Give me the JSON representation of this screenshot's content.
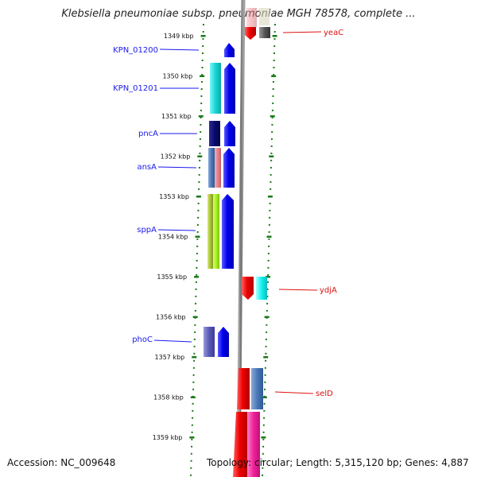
{
  "title": "Klebsiella pneumoniae subsp. pneumoniae MGH 78578, complete ...",
  "ruler": {
    "ticks": [
      {
        "label": "1349 kbp",
        "kb": 1349
      },
      {
        "label": "1350 kbp",
        "kb": 1350
      },
      {
        "label": "1351 kbp",
        "kb": 1351
      },
      {
        "label": "1352 kbp",
        "kb": 1352
      },
      {
        "label": "1353 kbp",
        "kb": 1353
      },
      {
        "label": "1354 kbp",
        "kb": 1354
      },
      {
        "label": "1355 kbp",
        "kb": 1355
      },
      {
        "label": "1356 kbp",
        "kb": 1356
      },
      {
        "label": "1357 kbp",
        "kb": 1357
      },
      {
        "label": "1358 kbp",
        "kb": 1358
      },
      {
        "label": "1359 kbp",
        "kb": 1359
      }
    ]
  },
  "labels_left": [
    {
      "name": "KPN_01200",
      "color": "#1a1aee"
    },
    {
      "name": "KPN_01201",
      "color": "#1a1aee"
    },
    {
      "name": "pncA",
      "color": "#1a1aee"
    },
    {
      "name": "ansA",
      "color": "#1a1aee"
    },
    {
      "name": "sppA",
      "color": "#1a1aee"
    },
    {
      "name": "phoC",
      "color": "#1a1aee"
    }
  ],
  "labels_right": [
    {
      "name": "yeaC",
      "color": "#dd1111"
    },
    {
      "name": "ydjA",
      "color": "#dd1111"
    },
    {
      "name": "selD",
      "color": "#dd1111"
    }
  ],
  "footer": {
    "accession": "Accession: NC_009648",
    "topology": "Topology: circular; Length: 5,315,120 bp; Genes: 4,887"
  },
  "colors": {
    "forward_strand": "#0000ee",
    "reverse_strand": "#ee0000",
    "backbone": "#808080",
    "ruler_ticks": "#1a7a1a"
  }
}
